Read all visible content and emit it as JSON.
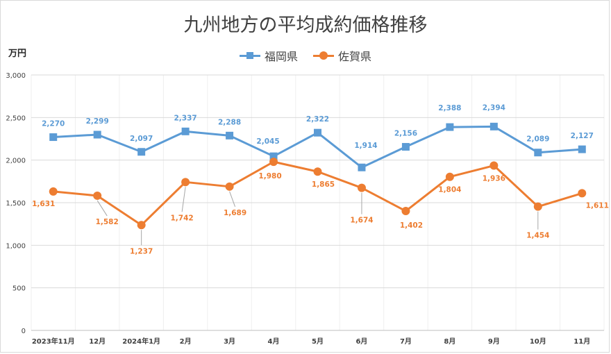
{
  "chart_data": {
    "type": "line",
    "title": "九州地方の平均成約価格推移",
    "ylabel": "万円",
    "xlabel": "",
    "categories": [
      "2023年11月",
      "12月",
      "2024年1月",
      "2月",
      "3月",
      "4月",
      "5月",
      "6月",
      "7月",
      "8月",
      "9月",
      "10月",
      "11月"
    ],
    "ylim": [
      0,
      3000
    ],
    "yticks": [
      0,
      500,
      1000,
      1500,
      2000,
      2500,
      3000
    ],
    "ytick_labels": [
      "0",
      "500",
      "1,000",
      "1,500",
      "2,000",
      "2,500",
      "3,000"
    ],
    "grid": true,
    "legend_position": "top-center",
    "series": [
      {
        "name": "福岡県",
        "color": "#5b9bd5",
        "marker": "square",
        "values": [
          2270,
          2299,
          2097,
          2337,
          2288,
          2045,
          2322,
          1914,
          2156,
          2388,
          2394,
          2089,
          2127
        ],
        "labels": [
          "2,270",
          "2,299",
          "2,097",
          "2,337",
          "2,288",
          "2,045",
          "2,322",
          "1,914",
          "2,156",
          "2,388",
          "2,394",
          "2,089",
          "2,127"
        ]
      },
      {
        "name": "佐賀県",
        "color": "#ed7d31",
        "marker": "circle",
        "values": [
          1631,
          1582,
          1237,
          1742,
          1689,
          1980,
          1865,
          1674,
          1402,
          1804,
          1936,
          1454,
          1611
        ],
        "labels": [
          "1,631",
          "1,582",
          "1,237",
          "1,742",
          "1,689",
          "1,980",
          "1,865",
          "1,674",
          "1,402",
          "1,804",
          "1,936",
          "1,454",
          "1,611"
        ]
      }
    ]
  }
}
